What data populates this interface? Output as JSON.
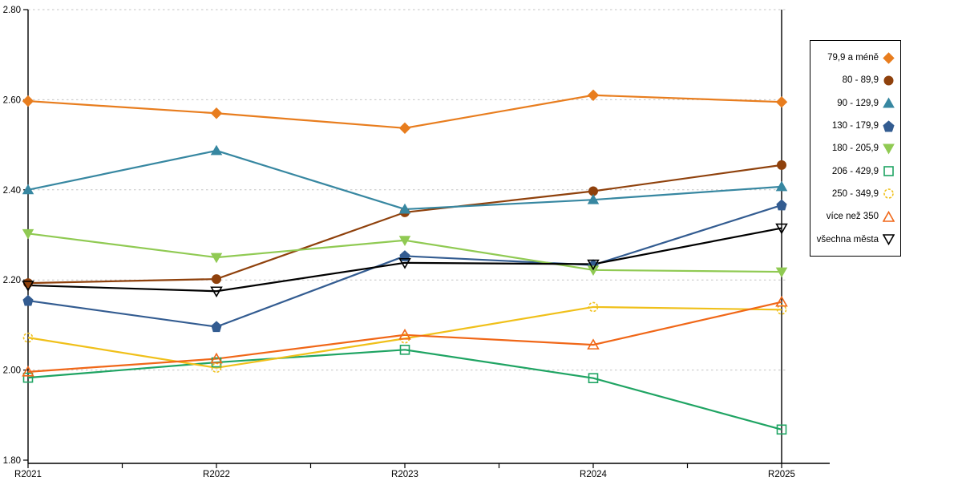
{
  "chart_data": {
    "type": "line",
    "title": "",
    "xlabel": "",
    "ylabel": "",
    "categories": [
      "R2021",
      "R2022",
      "R2023",
      "R2024",
      "R2025"
    ],
    "ylim": [
      1.8,
      2.8
    ],
    "yticks": [
      "1.80",
      "2.00",
      "2.20",
      "2.40",
      "2.60",
      "2.80"
    ],
    "grid": "horizontal-dashed",
    "gridline_values": [
      2.0,
      2.2,
      2.4,
      2.6,
      2.8
    ],
    "legend_position": "right",
    "series": [
      {
        "name": "79,9 a méně",
        "color": "#E87D1E",
        "marker": "diamond",
        "fill": "solid",
        "values": [
          2.597,
          2.57,
          2.537,
          2.61,
          2.595
        ]
      },
      {
        "name": "80 - 89,9",
        "color": "#8F410C",
        "marker": "circle",
        "fill": "solid",
        "values": [
          2.193,
          2.202,
          2.35,
          2.397,
          2.455
        ]
      },
      {
        "name": "90 - 129,9",
        "color": "#3787A1",
        "marker": "triangle-up",
        "fill": "solid",
        "values": [
          2.4,
          2.487,
          2.357,
          2.378,
          2.407
        ]
      },
      {
        "name": "130 - 179,9",
        "color": "#335C91",
        "marker": "pentagon",
        "fill": "solid",
        "values": [
          2.154,
          2.096,
          2.253,
          2.233,
          2.366
        ]
      },
      {
        "name": "180 - 205,9",
        "color": "#90CA53",
        "marker": "triangle-down",
        "fill": "solid",
        "values": [
          2.303,
          2.25,
          2.288,
          2.222,
          2.218
        ]
      },
      {
        "name": "206 - 429,9",
        "color": "#1FA463",
        "marker": "square",
        "fill": "open",
        "values": [
          1.983,
          2.017,
          2.045,
          1.982,
          1.868
        ]
      },
      {
        "name": "250 - 349,9",
        "color": "#F0C01A",
        "marker": "circle",
        "fill": "open-dashed",
        "values": [
          2.072,
          2.005,
          2.07,
          2.14,
          2.134
        ]
      },
      {
        "name": "více než 350",
        "color": "#F06718",
        "marker": "triangle-up",
        "fill": "open",
        "values": [
          1.996,
          2.025,
          2.078,
          2.056,
          2.151
        ]
      },
      {
        "name": "všechna města",
        "color": "#000000",
        "marker": "triangle-down",
        "fill": "open",
        "values": [
          2.188,
          2.175,
          2.238,
          2.235,
          2.315
        ]
      }
    ]
  }
}
